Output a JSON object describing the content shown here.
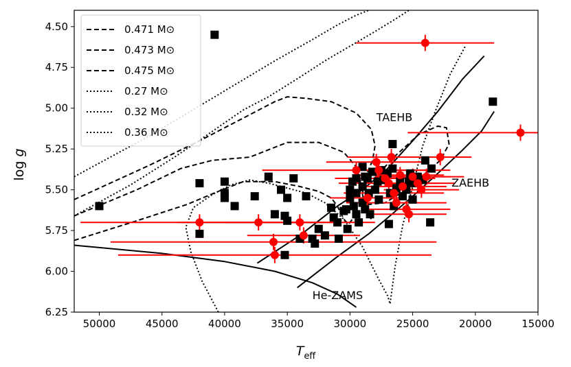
{
  "chart_data": {
    "type": "scatter",
    "xlabel": "T_eff",
    "ylabel": "log g",
    "xlim": [
      52000,
      15000
    ],
    "ylim": [
      6.25,
      4.4
    ],
    "x_ticks": [
      50000,
      45000,
      40000,
      35000,
      30000,
      25000,
      20000,
      15000
    ],
    "y_ticks": [
      4.5,
      4.75,
      5.0,
      5.25,
      5.5,
      5.75,
      6.0,
      6.25
    ],
    "x_tick_labels": [
      "50000",
      "45000",
      "40000",
      "35000",
      "30000",
      "25000",
      "20000",
      "15000"
    ],
    "y_tick_labels": [
      "4.50",
      "4.75",
      "5.00",
      "5.25",
      "5.50",
      "5.75",
      "6.00",
      "6.25"
    ],
    "colors": {
      "black": "#000000",
      "red": "#ff0000"
    },
    "annotations": [
      {
        "text": "TAEHB",
        "x": 27900,
        "y": 5.08
      },
      {
        "text": "ZAEHB",
        "x": 21900,
        "y": 5.48
      },
      {
        "text": "He-ZAMS",
        "x": 33000,
        "y": 6.17
      }
    ],
    "legend": {
      "placement": "top-left",
      "entries": [
        {
          "label": "0.471 M⊙",
          "style": "dashed"
        },
        {
          "label": "0.473 M⊙",
          "style": "dashed"
        },
        {
          "label": "0.475 M⊙",
          "style": "dashed"
        },
        {
          "label": "0.27 M⊙",
          "style": "dotted"
        },
        {
          "label": "0.32 M⊙",
          "style": "dotted"
        },
        {
          "label": "0.36 M⊙",
          "style": "dotted"
        }
      ]
    },
    "lines": [
      {
        "name": "TAEHB",
        "style": "solid",
        "x": [
          37400,
          34000,
          31000,
          29000,
          27000,
          25000,
          23000,
          21000,
          19300
        ],
        "y": [
          5.95,
          5.78,
          5.6,
          5.5,
          5.37,
          5.2,
          5.02,
          4.82,
          4.68
        ]
      },
      {
        "name": "ZAEHB",
        "style": "solid",
        "x": [
          34200,
          31000,
          28500,
          26500,
          24700,
          23000,
          21200,
          19500,
          18500
        ],
        "y": [
          6.1,
          5.91,
          5.77,
          5.64,
          5.52,
          5.4,
          5.27,
          5.14,
          5.02
        ]
      },
      {
        "name": "He-ZAMS",
        "style": "solid",
        "x": [
          52000,
          45000,
          40000,
          36000,
          33000,
          31000,
          29500
        ],
        "y": [
          5.84,
          5.89,
          5.94,
          6.0,
          6.07,
          6.14,
          6.22
        ]
      },
      {
        "name": "0.471",
        "style": "dashed",
        "x": [
          52000,
          47000,
          43000,
          40500,
          38500,
          36000,
          34000,
          32500,
          31500,
          31000,
          30700,
          30400,
          30100,
          29800,
          29500
        ],
        "y": [
          5.81,
          5.69,
          5.59,
          5.51,
          5.45,
          5.45,
          5.48,
          5.51,
          5.55,
          5.6,
          5.65,
          5.69,
          5.71,
          5.68,
          5.62
        ]
      },
      {
        "name": "0.473",
        "style": "dashed",
        "x": [
          52000,
          47000,
          43500,
          41000,
          38000,
          35000,
          32500,
          30500,
          29500,
          29200,
          29000,
          28800,
          28600,
          28300
        ],
        "y": [
          5.66,
          5.5,
          5.37,
          5.32,
          5.3,
          5.21,
          5.21,
          5.27,
          5.36,
          5.44,
          5.53,
          5.6,
          5.65,
          5.68
        ]
      },
      {
        "name": "0.475",
        "style": "dashed",
        "x": [
          52000,
          46000,
          42000,
          40000,
          38500,
          37000,
          36000,
          35000,
          33500,
          31500,
          29500,
          28300,
          28000,
          28200,
          28700,
          29000,
          28500,
          27200,
          25500,
          24000,
          22800,
          22100,
          22300,
          23000,
          24500,
          26500,
          28300
        ],
        "y": [
          5.56,
          5.35,
          5.2,
          5.12,
          5.06,
          5.0,
          4.96,
          4.93,
          4.94,
          4.96,
          5.03,
          5.13,
          5.23,
          5.32,
          5.41,
          5.52,
          5.59,
          5.58,
          5.5,
          5.4,
          5.32,
          5.22,
          5.12,
          5.11,
          5.16,
          5.3,
          5.45
        ]
      },
      {
        "name": "0.27",
        "style": "dotted",
        "x": [
          52000,
          46000,
          41000,
          36000,
          33000,
          31000,
          29500,
          28500
        ],
        "y": [
          5.42,
          5.17,
          4.94,
          4.71,
          4.58,
          4.49,
          4.43,
          4.4
        ]
      },
      {
        "name": "0.32",
        "style": "dotted",
        "x": [
          52000,
          47500,
          44000,
          41500,
          40200,
          38500,
          36500,
          34000,
          32000,
          30000,
          28000,
          26300,
          25300,
          24500,
          23700,
          22800,
          21800,
          20500
        ],
        "y": [
          5.66,
          5.47,
          5.3,
          5.17,
          5.1,
          5.01,
          4.93,
          4.81,
          4.71,
          4.62,
          4.53,
          4.45,
          4.4,
          4.37,
          4.34,
          4.32,
          4.3,
          4.28
        ]
      },
      {
        "name": "0.36",
        "style": "dotted",
        "x": [
          40500,
          41800,
          42700,
          43100,
          42500,
          41000,
          39500,
          38000,
          36500,
          35000,
          33500,
          32000,
          30500,
          29000,
          27700,
          27000,
          26800,
          26400,
          25800,
          25000,
          24200,
          23200,
          22000,
          20800
        ],
        "y": [
          6.25,
          6.06,
          5.88,
          5.73,
          5.61,
          5.53,
          5.47,
          5.44,
          5.46,
          5.49,
          5.52,
          5.58,
          5.68,
          5.85,
          6.05,
          6.15,
          6.2,
          5.97,
          5.72,
          5.48,
          5.23,
          5.02,
          4.79,
          4.62
        ]
      }
    ],
    "series": [
      {
        "marker": "square",
        "color": "#000000",
        "points": [
          [
            40800,
            4.55
          ],
          [
            18600,
            4.96
          ],
          [
            26600,
            5.22
          ],
          [
            42000,
            5.46
          ],
          [
            40000,
            5.45
          ],
          [
            40000,
            5.52
          ],
          [
            39200,
            5.6
          ],
          [
            40000,
            5.55
          ],
          [
            36500,
            5.42
          ],
          [
            37600,
            5.54
          ],
          [
            35500,
            5.5
          ],
          [
            35000,
            5.55
          ],
          [
            34500,
            5.43
          ],
          [
            33500,
            5.54
          ],
          [
            36000,
            5.65
          ],
          [
            35200,
            5.66
          ],
          [
            35000,
            5.69
          ],
          [
            33000,
            5.8
          ],
          [
            32500,
            5.74
          ],
          [
            32000,
            5.78
          ],
          [
            31500,
            5.61
          ],
          [
            31300,
            5.67
          ],
          [
            31000,
            5.7
          ],
          [
            30900,
            5.8
          ],
          [
            30500,
            5.63
          ],
          [
            30300,
            5.62
          ],
          [
            30200,
            5.74
          ],
          [
            30000,
            5.55
          ],
          [
            30000,
            5.5
          ],
          [
            29800,
            5.45
          ],
          [
            29700,
            5.6
          ],
          [
            29500,
            5.43
          ],
          [
            29500,
            5.52
          ],
          [
            29500,
            5.65
          ],
          [
            29300,
            5.7
          ],
          [
            29000,
            5.36
          ],
          [
            29000,
            5.48
          ],
          [
            29000,
            5.58
          ],
          [
            28800,
            5.42
          ],
          [
            28800,
            5.62
          ],
          [
            28600,
            5.43
          ],
          [
            28500,
            5.52
          ],
          [
            28400,
            5.65
          ],
          [
            28200,
            5.39
          ],
          [
            28000,
            5.5
          ],
          [
            27800,
            5.45
          ],
          [
            27700,
            5.56
          ],
          [
            27500,
            5.38
          ],
          [
            27300,
            5.44
          ],
          [
            27000,
            5.4
          ],
          [
            26800,
            5.52
          ],
          [
            26600,
            5.37
          ],
          [
            26500,
            5.6
          ],
          [
            26300,
            5.49
          ],
          [
            26000,
            5.45
          ],
          [
            25800,
            5.54
          ],
          [
            25500,
            5.5
          ],
          [
            25300,
            5.45
          ],
          [
            25200,
            5.4
          ],
          [
            25000,
            5.56
          ],
          [
            24800,
            5.46
          ],
          [
            24600,
            5.42
          ],
          [
            24200,
            5.44
          ],
          [
            24000,
            5.32
          ],
          [
            23500,
            5.37
          ],
          [
            23600,
            5.7
          ],
          [
            26900,
            5.71
          ],
          [
            34000,
            5.8
          ],
          [
            35200,
            5.9
          ],
          [
            42000,
            5.77
          ],
          [
            50000,
            5.6
          ],
          [
            32800,
            5.83
          ]
        ]
      },
      {
        "marker": "circle",
        "color": "#ff0000",
        "points": [
          {
            "x": 24000,
            "y": 4.6,
            "xerr": 5500,
            "yerr": 0.05
          },
          {
            "x": 16400,
            "y": 5.15,
            "xerr": 9000,
            "yerr": 0.05
          },
          {
            "x": 42000,
            "y": 5.7,
            "xerr": 9500,
            "yerr": 0.05
          },
          {
            "x": 37300,
            "y": 5.7,
            "xerr": 6500,
            "yerr": 0.05
          },
          {
            "x": 36100,
            "y": 5.82,
            "xerr": 13000,
            "yerr": 0.05
          },
          {
            "x": 36000,
            "y": 5.9,
            "xerr": 12500,
            "yerr": 0.05
          },
          {
            "x": 34000,
            "y": 5.7,
            "xerr": 6000,
            "yerr": 0.05
          },
          {
            "x": 33700,
            "y": 5.78,
            "xerr": 4500,
            "yerr": 0.05
          },
          {
            "x": 29500,
            "y": 5.38,
            "xerr": 7500,
            "yerr": 0.05
          },
          {
            "x": 27900,
            "y": 5.33,
            "xerr": 4000,
            "yerr": 0.05
          },
          {
            "x": 27700,
            "y": 5.38,
            "xerr": 4000,
            "yerr": 0.05
          },
          {
            "x": 27200,
            "y": 5.43,
            "xerr": 4000,
            "yerr": 0.05
          },
          {
            "x": 26900,
            "y": 5.46,
            "xerr": 4000,
            "yerr": 0.05
          },
          {
            "x": 26700,
            "y": 5.3,
            "xerr": 3500,
            "yerr": 0.05
          },
          {
            "x": 26500,
            "y": 5.52,
            "xerr": 4000,
            "yerr": 0.05
          },
          {
            "x": 26300,
            "y": 5.58,
            "xerr": 4000,
            "yerr": 0.05
          },
          {
            "x": 26000,
            "y": 5.41,
            "xerr": 3500,
            "yerr": 0.05
          },
          {
            "x": 25800,
            "y": 5.48,
            "xerr": 3500,
            "yerr": 0.05
          },
          {
            "x": 25500,
            "y": 5.62,
            "xerr": 3500,
            "yerr": 0.05
          },
          {
            "x": 25000,
            "y": 5.42,
            "xerr": 3000,
            "yerr": 0.05
          },
          {
            "x": 24600,
            "y": 5.46,
            "xerr": 3000,
            "yerr": 0.05
          },
          {
            "x": 24300,
            "y": 5.5,
            "xerr": 3000,
            "yerr": 0.05
          },
          {
            "x": 23900,
            "y": 5.42,
            "xerr": 3000,
            "yerr": 0.05
          },
          {
            "x": 22800,
            "y": 5.3,
            "xerr": 2500,
            "yerr": 0.05
          },
          {
            "x": 25300,
            "y": 5.65,
            "xerr": 3000,
            "yerr": 0.05
          },
          {
            "x": 28600,
            "y": 5.55,
            "xerr": 3000,
            "yerr": 0.05
          }
        ]
      }
    ]
  }
}
